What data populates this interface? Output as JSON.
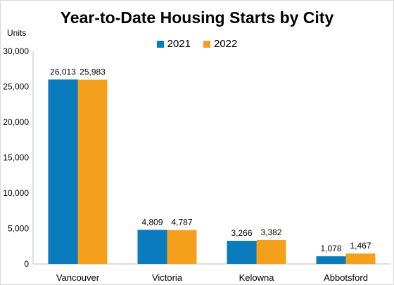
{
  "chart_data": {
    "type": "bar",
    "title": "Year-to-Date Housing Starts by City",
    "ylabel": "Units",
    "categories": [
      "Vancouver",
      "Victoria",
      "Kelowna",
      "Abbotsford"
    ],
    "series": [
      {
        "name": "2021",
        "color": "#0a7bbd",
        "values": [
          26013,
          4809,
          3266,
          1078
        ],
        "labels": [
          "26,013",
          "4,809",
          "3,266",
          "1,078"
        ]
      },
      {
        "name": "2022",
        "color": "#f5a01d",
        "values": [
          25983,
          4787,
          3382,
          1467
        ],
        "labels": [
          "25,983",
          "4,787",
          "3,382",
          "1,467"
        ]
      }
    ],
    "ylim": [
      0,
      30000
    ],
    "yticks": [
      0,
      5000,
      10000,
      15000,
      20000,
      25000,
      30000
    ],
    "ytick_labels": [
      "0",
      "5,000",
      "10,000",
      "15,000",
      "20,000",
      "25,000",
      "30,000"
    ],
    "grid": false,
    "legend_position": "top"
  }
}
